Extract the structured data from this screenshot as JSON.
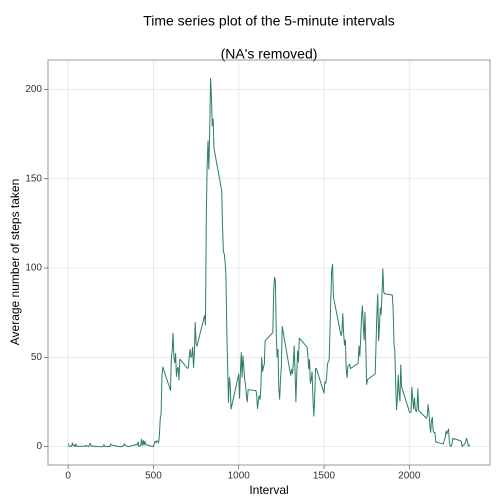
{
  "chart_data": {
    "type": "line",
    "title": "Time series plot of the 5-minute intervals",
    "subtitle": "(NA's removed)",
    "xlabel": "Interval",
    "ylabel": "Average number of steps taken",
    "color": "#2e7d64",
    "grid": true,
    "xlim": [
      -118,
      2473
    ],
    "xticks": [
      0,
      500,
      1000,
      1500,
      2000
    ],
    "ylim": [
      -10.3,
      216.5
    ],
    "yticks": [
      0,
      50,
      100,
      150,
      200
    ],
    "x": [
      0,
      5,
      10,
      15,
      20,
      25,
      30,
      35,
      40,
      45,
      50,
      55,
      100,
      105,
      110,
      115,
      120,
      125,
      130,
      135,
      140,
      145,
      150,
      155,
      200,
      205,
      210,
      215,
      220,
      225,
      230,
      235,
      240,
      245,
      250,
      255,
      300,
      305,
      310,
      315,
      320,
      325,
      330,
      335,
      340,
      345,
      350,
      355,
      400,
      405,
      410,
      415,
      420,
      425,
      430,
      435,
      440,
      445,
      450,
      455,
      500,
      505,
      510,
      515,
      520,
      525,
      530,
      535,
      540,
      545,
      550,
      555,
      600,
      605,
      610,
      615,
      620,
      625,
      630,
      635,
      640,
      645,
      650,
      655,
      700,
      705,
      710,
      715,
      720,
      725,
      730,
      735,
      740,
      745,
      750,
      755,
      800,
      805,
      810,
      815,
      820,
      825,
      830,
      835,
      840,
      845,
      850,
      855,
      900,
      905,
      910,
      915,
      920,
      925,
      930,
      935,
      940,
      945,
      950,
      955,
      1000,
      1005,
      1010,
      1015,
      1020,
      1025,
      1030,
      1035,
      1040,
      1045,
      1050,
      1055,
      1100,
      1105,
      1110,
      1115,
      1120,
      1125,
      1130,
      1135,
      1140,
      1145,
      1150,
      1155,
      1200,
      1205,
      1210,
      1215,
      1220,
      1225,
      1230,
      1235,
      1240,
      1245,
      1250,
      1255,
      1300,
      1305,
      1310,
      1315,
      1320,
      1325,
      1330,
      1335,
      1340,
      1345,
      1350,
      1355,
      1400,
      1405,
      1410,
      1415,
      1420,
      1425,
      1430,
      1435,
      1440,
      1445,
      1450,
      1455,
      1500,
      1505,
      1510,
      1515,
      1520,
      1525,
      1530,
      1535,
      1540,
      1545,
      1550,
      1555,
      1600,
      1605,
      1610,
      1615,
      1620,
      1625,
      1630,
      1635,
      1640,
      1645,
      1650,
      1655,
      1700,
      1705,
      1710,
      1715,
      1720,
      1725,
      1730,
      1735,
      1740,
      1745,
      1750,
      1755,
      1800,
      1805,
      1810,
      1815,
      1820,
      1825,
      1830,
      1835,
      1840,
      1845,
      1850,
      1855,
      1900,
      1905,
      1910,
      1915,
      1920,
      1925,
      1930,
      1935,
      1940,
      1945,
      1950,
      1955,
      2000,
      2005,
      2010,
      2015,
      2020,
      2025,
      2030,
      2035,
      2040,
      2045,
      2050,
      2055,
      2100,
      2105,
      2110,
      2115,
      2120,
      2125,
      2130,
      2135,
      2140,
      2145,
      2150,
      2155,
      2200,
      2205,
      2210,
      2215,
      2220,
      2225,
      2230,
      2235,
      2240,
      2245,
      2250,
      2255,
      2300,
      2305,
      2310,
      2315,
      2320,
      2325,
      2330,
      2335,
      2340,
      2345,
      2350,
      2355
    ],
    "values": [
      1.7,
      0.3,
      0.1,
      0.2,
      0.1,
      2.1,
      0.5,
      0.9,
      0,
      1.5,
      0.3,
      0.1,
      0.3,
      0.7,
      0.2,
      0.3,
      0,
      1.1,
      1.8,
      0.2,
      0.2,
      0.4,
      0.3,
      0,
      0,
      0,
      1.1,
      0,
      0,
      0.1,
      0,
      0.2,
      0,
      0,
      1.5,
      0.9,
      0,
      0,
      0,
      0,
      0.2,
      0.6,
      1.6,
      0.6,
      0.5,
      0.1,
      0,
      0,
      1.2,
      0.9,
      2.6,
      0,
      0.3,
      0.4,
      4.1,
      0.7,
      3.5,
      0.8,
      3.1,
      1.1,
      0,
      1.6,
      3,
      2.2,
      3.3,
      3,
      2.1,
      6.1,
      16,
      18.3,
      39.5,
      44.5,
      31.5,
      49.3,
      53.8,
      63.5,
      50,
      47,
      52.2,
      39.3,
      44,
      44.2,
      37.4,
      49,
      43.8,
      44.4,
      50.5,
      54.5,
      49.9,
      51,
      55.7,
      44.3,
      52.3,
      69.5,
      57.8,
      56.2,
      73.4,
      68.2,
      129.4,
      157.5,
      171.2,
      155.4,
      177.3,
      206.2,
      195.9,
      179.6,
      183.4,
      167,
      143.5,
      124,
      109.1,
      108.1,
      103.7,
      95.9,
      66.2,
      45.2,
      24.8,
      38.8,
      35,
      21,
      40.6,
      27,
      42.4,
      52.7,
      38.9,
      50.8,
      44.3,
      37.4,
      34.7,
      28.3,
      25.1,
      31.9,
      31.4,
      29.7,
      21.3,
      25.5,
      28.4,
      26.5,
      33.4,
      50,
      42,
      44.6,
      46,
      59.3,
      63.9,
      87.7,
      94.8,
      92.8,
      63.4,
      50.2,
      54.5,
      32.4,
      26.5,
      37.7,
      45.1,
      67.3,
      42.3,
      39.9,
      43.3,
      41,
      46.2,
      56.4,
      42.8,
      25.1,
      40,
      53.5,
      47.3,
      60.8,
      55.8,
      51.9,
      43.6,
      48.7,
      35.5,
      37.5,
      41.8,
      27.5,
      17.1,
      26.1,
      43.6,
      43.8,
      30,
      36.1,
      35.5,
      38.8,
      46,
      47.8,
      48.1,
      65.3,
      82.9,
      98.7,
      102.1,
      84,
      62.1,
      64.1,
      74.5,
      63.2,
      56.9,
      59.8,
      43.9,
      38.6,
      44.7,
      45.5,
      46.2,
      43.7,
      46.6,
      56.3,
      50.7,
      61.2,
      72.7,
      78.9,
      68.9,
      59.7,
      75.1,
      56.5,
      34.8,
      37.5,
      40.7,
      58,
      74.7,
      85.3,
      59.3,
      67.8,
      77.7,
      74.2,
      85.3,
      99.5,
      86.6,
      85.6,
      84.9,
      77.8,
      58,
      53.4,
      36.3,
      20.7,
      27.4,
      40,
      30.2,
      25.5,
      45.7,
      33.5,
      19.6,
      19,
      19.3,
      33.3,
      26.8,
      21.2,
      27.3,
      21.3,
      19.5,
      21.3,
      32.3,
      20.2,
      15.9,
      17.2,
      23.5,
      19.2,
      12.5,
      8,
      14.7,
      16.3,
      8.7,
      7.8,
      8.1,
      2.6,
      1.5,
      3.7,
      4.8,
      8.5,
      7.1,
      8.7,
      9.8,
      2.2,
      0.3,
      0.1,
      1.6,
      4.6,
      3.3,
      2.8,
      0,
      0.8,
      1,
      1.6,
      2.6,
      4.7,
      3.3,
      0.6,
      0.2,
      1.1
    ]
  }
}
